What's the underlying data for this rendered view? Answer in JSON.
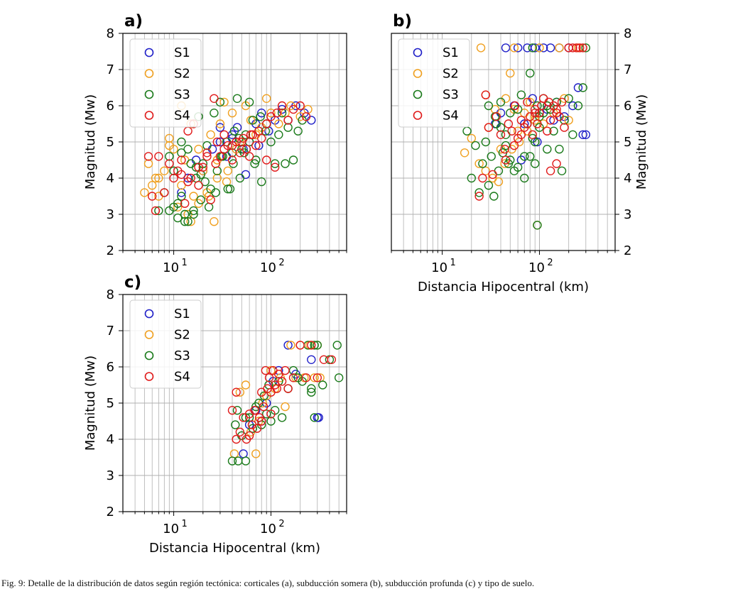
{
  "caption": "Fig. 9: Detalle de la distribución de datos según región tectónica: corticales (a), subducción somera (b), subducción profunda (c) y tipo de suelo.",
  "legend_entries": [
    {
      "name": "S1",
      "color": "#1f1fc8"
    },
    {
      "name": "S2",
      "color": "#f0a020"
    },
    {
      "name": "S3",
      "color": "#1a7a1a"
    },
    {
      "name": "S4",
      "color": "#e01a1a"
    }
  ],
  "chart_data": [
    {
      "panel": "a)",
      "type": "scatter",
      "xscale": "log",
      "xlim": [
        3,
        600
      ],
      "ylim": [
        2,
        8
      ],
      "xticks": [
        {
          "value": 10,
          "base": "10",
          "exp": "1"
        },
        {
          "value": 100,
          "base": "10",
          "exp": "2"
        }
      ],
      "yticks": [
        "2",
        "3",
        "4",
        "5",
        "6",
        "7",
        "8"
      ],
      "xlabel": "",
      "ylabel": "Magnitud (Mw)",
      "yaxis_side": "left",
      "grid": true,
      "legend_position": "upper-left",
      "series": [
        {
          "name": "S1",
          "x": [
            12,
            14,
            17,
            20,
            25,
            30,
            35,
            40,
            45,
            52,
            60,
            70,
            80,
            95,
            110,
            130,
            150,
            180,
            220,
            260,
            30,
            40,
            55,
            75
          ],
          "y": [
            3.6,
            4.0,
            4.5,
            4.2,
            4.8,
            5.0,
            4.6,
            5.2,
            5.4,
            4.8,
            5.0,
            5.5,
            5.8,
            5.3,
            5.6,
            5.9,
            5.6,
            6.0,
            5.8,
            5.6,
            5.4,
            5.1,
            4.1,
            4.9
          ]
        },
        {
          "name": "S2",
          "x": [
            5,
            5.5,
            6,
            6.5,
            7,
            8,
            9,
            10,
            11,
            12,
            13,
            14,
            15,
            16,
            18,
            20,
            22,
            24,
            26,
            28,
            30,
            33,
            36,
            40,
            44,
            48,
            55,
            62,
            70,
            80,
            90,
            100,
            120,
            140,
            160,
            200,
            240,
            12,
            15,
            18,
            23,
            28,
            35,
            9,
            7
          ],
          "y": [
            3.6,
            4.4,
            3.8,
            4.0,
            3.5,
            4.2,
            5.1,
            4.8,
            3.2,
            3.8,
            4.5,
            3.0,
            2.8,
            3.5,
            4.8,
            4.2,
            3.6,
            5.2,
            2.8,
            4.5,
            5.5,
            6.1,
            4.2,
            5.8,
            4.8,
            5.0,
            6.0,
            5.6,
            5.2,
            5.4,
            6.2,
            5.8,
            5.5,
            5.8,
            6.0,
            5.7,
            5.9,
            6.0,
            5.5,
            3.3,
            3.5,
            4.0,
            3.9,
            4.9,
            4.0
          ]
        },
        {
          "name": "S3",
          "x": [
            7,
            8,
            9,
            10,
            10,
            11,
            12,
            12,
            13,
            14,
            15,
            16,
            17,
            18,
            19,
            20,
            21,
            22,
            24,
            26,
            28,
            30,
            32,
            35,
            38,
            40,
            42,
            45,
            48,
            50,
            55,
            60,
            65,
            70,
            75,
            80,
            90,
            100,
            110,
            120,
            130,
            140,
            150,
            170,
            190,
            210,
            9,
            11,
            13,
            16,
            19,
            23,
            27,
            31,
            36,
            41,
            47,
            53,
            60,
            68,
            78,
            88,
            12,
            14,
            17
          ],
          "y": [
            3.1,
            3.6,
            4.6,
            4.2,
            3.2,
            2.9,
            3.5,
            4.7,
            3.0,
            2.8,
            4.4,
            3.1,
            4.0,
            5.7,
            3.4,
            4.4,
            3.9,
            4.9,
            3.7,
            5.8,
            4.2,
            6.1,
            4.6,
            5.0,
            3.7,
            4.7,
            5.3,
            6.2,
            4.0,
            4.8,
            5.2,
            5.0,
            5.6,
            4.5,
            5.3,
            3.9,
            5.5,
            5.0,
            4.4,
            5.2,
            5.8,
            4.4,
            5.4,
            4.5,
            5.3,
            5.6,
            3.1,
            3.3,
            2.8,
            3.0,
            4.1,
            3.2,
            3.6,
            4.6,
            3.7,
            4.4,
            5.1,
            4.7,
            6.1,
            4.4,
            5.7,
            5.3,
            5.0,
            4.8,
            4.3
          ]
        },
        {
          "name": "S4",
          "x": [
            5.5,
            6,
            6.5,
            7,
            8,
            9,
            10,
            11,
            12,
            13,
            14,
            15,
            16,
            18,
            20,
            22,
            24,
            26,
            28,
            30,
            33,
            36,
            40,
            44,
            48,
            52,
            56,
            60,
            65,
            70,
            80,
            90,
            100,
            115,
            130,
            150,
            170,
            200,
            230,
            12,
            14,
            18,
            22,
            27,
            33,
            40,
            50,
            62,
            75,
            90,
            110
          ],
          "y": [
            4.6,
            3.5,
            3.1,
            4.6,
            3.6,
            4.4,
            4.0,
            4.2,
            4.5,
            3.3,
            5.3,
            4.0,
            5.5,
            3.8,
            4.3,
            4.7,
            3.4,
            6.2,
            5.0,
            4.6,
            5.2,
            4.9,
            4.5,
            5.0,
            4.7,
            5.1,
            4.8,
            4.6,
            5.2,
            4.9,
            5.1,
            4.5,
            5.7,
            5.8,
            6.0,
            5.6,
            5.9,
            6.0,
            5.7,
            4.1,
            3.9,
            4.3,
            4.6,
            4.4,
            4.8,
            4.9,
            5.0,
            5.2,
            5.3,
            5.5,
            4.3
          ]
        }
      ]
    },
    {
      "panel": "b)",
      "type": "scatter",
      "xscale": "log",
      "xlim": [
        3,
        600
      ],
      "ylim": [
        2,
        8
      ],
      "xticks": [
        {
          "value": 10,
          "base": "10",
          "exp": "1"
        },
        {
          "value": 100,
          "base": "10",
          "exp": "2"
        }
      ],
      "yticks": [
        "2",
        "3",
        "4",
        "5",
        "6",
        "7",
        "8"
      ],
      "xlabel": "Distancia Hipocentral (km)",
      "ylabel": "Magnitud (Mw)",
      "yaxis_side": "right",
      "grid": true,
      "legend_position": "upper-left",
      "series": [
        {
          "name": "S1",
          "x": [
            45,
            60,
            75,
            90,
            110,
            130,
            160,
            200,
            250,
            300,
            40,
            55,
            70,
            85,
            100,
            120,
            150,
            180,
            220,
            280,
            35,
            65,
            95,
            140
          ],
          "y": [
            7.6,
            7.6,
            7.6,
            7.6,
            7.6,
            7.6,
            7.6,
            7.6,
            6.5,
            5.2,
            5.8,
            6.0,
            5.5,
            6.2,
            5.8,
            5.9,
            6.1,
            5.7,
            6.0,
            5.2,
            5.5,
            4.5,
            5.0,
            5.6
          ]
        },
        {
          "name": "S2",
          "x": [
            25,
            30,
            35,
            40,
            45,
            50,
            55,
            60,
            70,
            80,
            90,
            100,
            110,
            120,
            140,
            160,
            180,
            200,
            250,
            17,
            20,
            24,
            28,
            33,
            38,
            44,
            52,
            62,
            75,
            90,
            28,
            55,
            95
          ],
          "y": [
            7.6,
            5.4,
            5.9,
            4.8,
            6.2,
            6.9,
            7.6,
            5.3,
            5.8,
            6.1,
            5.7,
            7.6,
            5.5,
            6.0,
            5.8,
            7.6,
            6.2,
            5.6,
            7.6,
            4.7,
            5.1,
            4.4,
            4.2,
            4.0,
            3.9,
            4.4,
            4.8,
            5.0,
            5.3,
            5.6,
            6.3,
            5.9,
            2.7
          ]
        },
        {
          "name": "S3",
          "x": [
            18,
            20,
            22,
            24,
            26,
            28,
            30,
            32,
            34,
            36,
            38,
            40,
            42,
            45,
            48,
            50,
            55,
            60,
            65,
            70,
            75,
            80,
            85,
            90,
            95,
            100,
            110,
            120,
            130,
            140,
            150,
            160,
            170,
            180,
            200,
            220,
            250,
            280,
            300,
            30,
            35,
            40,
            45,
            50,
            60,
            70,
            80,
            90,
            100,
            110,
            120,
            85,
            95
          ],
          "y": [
            5.3,
            4.0,
            4.9,
            3.6,
            4.4,
            5.0,
            3.8,
            4.6,
            3.5,
            5.5,
            4.2,
            6.1,
            4.7,
            5.2,
            4.4,
            5.8,
            4.2,
            5.9,
            6.3,
            4.6,
            5.5,
            6.9,
            5.1,
            4.4,
            6.0,
            5.7,
            6.2,
            4.8,
            5.9,
            5.3,
            6.1,
            4.8,
            4.2,
            5.6,
            6.2,
            5.2,
            6.0,
            6.5,
            7.6,
            6.0,
            5.7,
            5.4,
            4.9,
            4.5,
            4.3,
            4.0,
            4.6,
            5.0,
            5.4,
            5.8,
            6.0,
            7.6,
            2.7
          ]
        },
        {
          "name": "S4",
          "x": [
            24,
            26,
            28,
            30,
            33,
            36,
            40,
            44,
            48,
            52,
            56,
            60,
            65,
            70,
            75,
            80,
            85,
            90,
            95,
            100,
            110,
            120,
            130,
            140,
            150,
            160,
            170,
            180,
            200,
            220,
            240,
            260,
            280,
            45,
            55,
            65,
            75,
            90,
            105,
            125,
            150,
            130,
            150
          ],
          "y": [
            3.5,
            4.0,
            6.3,
            5.4,
            4.1,
            5.7,
            5.2,
            4.8,
            5.5,
            5.3,
            6.0,
            5.1,
            5.6,
            5.4,
            6.1,
            5.7,
            5.2,
            5.9,
            5.5,
            5.8,
            6.2,
            5.3,
            5.6,
            6.0,
            5.8,
            5.7,
            6.1,
            5.4,
            7.6,
            7.6,
            7.6,
            7.6,
            7.6,
            4.5,
            4.9,
            5.2,
            5.5,
            5.8,
            6.0,
            6.1,
            5.9,
            4.2,
            4.4
          ]
        }
      ]
    },
    {
      "panel": "c)",
      "type": "scatter",
      "xscale": "log",
      "xlim": [
        3,
        600
      ],
      "ylim": [
        2,
        8
      ],
      "xticks": [
        {
          "value": 10,
          "base": "10",
          "exp": "1"
        },
        {
          "value": 100,
          "base": "10",
          "exp": "2"
        }
      ],
      "yticks": [
        "2",
        "3",
        "4",
        "5",
        "6",
        "7",
        "8"
      ],
      "xlabel": "Distancia Hipocentral (km)",
      "ylabel": "Magnitud (Mw)",
      "yaxis_side": "left",
      "grid": true,
      "legend_position": "upper-left",
      "series": [
        {
          "name": "S1",
          "x": [
            52,
            60,
            70,
            80,
            90,
            105,
            120,
            150,
            180,
            260,
            300,
            310
          ],
          "y": [
            3.6,
            4.4,
            4.8,
            4.5,
            5.0,
            5.6,
            5.9,
            6.6,
            5.8,
            6.2,
            4.6,
            4.6
          ]
        },
        {
          "name": "S2",
          "x": [
            42,
            48,
            55,
            62,
            68,
            75,
            82,
            90,
            100,
            110,
            125,
            140,
            160,
            180,
            200,
            220,
            250,
            280,
            300,
            320,
            70
          ],
          "y": [
            3.6,
            5.3,
            5.5,
            4.2,
            4.8,
            4.5,
            5.0,
            5.2,
            5.9,
            5.4,
            5.7,
            4.9,
            6.6,
            5.7,
            6.6,
            5.7,
            6.6,
            5.7,
            6.6,
            5.7,
            3.6
          ]
        },
        {
          "name": "S3",
          "x": [
            40,
            43,
            46,
            50,
            55,
            60,
            65,
            70,
            75,
            80,
            85,
            90,
            95,
            100,
            110,
            120,
            130,
            150,
            170,
            190,
            210,
            240,
            260,
            280,
            300,
            340,
            400,
            480,
            500,
            45,
            55,
            260,
            280
          ],
          "y": [
            3.4,
            4.4,
            3.4,
            4.1,
            3.4,
            4.6,
            4.3,
            4.9,
            5.0,
            4.4,
            5.2,
            4.7,
            5.5,
            4.5,
            4.8,
            5.6,
            4.6,
            5.4,
            5.9,
            5.7,
            5.6,
            6.6,
            5.3,
            4.6,
            6.6,
            5.5,
            6.2,
            6.6,
            5.7,
            4.8,
            4.6,
            5.4,
            6.6
          ]
        },
        {
          "name": "S4",
          "x": [
            40,
            44,
            48,
            52,
            56,
            60,
            64,
            68,
            72,
            76,
            80,
            84,
            88,
            92,
            96,
            100,
            105,
            110,
            115,
            120,
            130,
            140,
            150,
            170,
            200,
            230,
            260,
            300,
            350,
            420,
            44,
            60,
            80,
            100
          ],
          "y": [
            4.8,
            5.3,
            4.2,
            4.6,
            4.0,
            4.7,
            4.4,
            4.8,
            4.3,
            4.6,
            5.3,
            4.9,
            5.9,
            5.4,
            5.7,
            5.3,
            5.9,
            5.5,
            5.4,
            5.8,
            5.6,
            5.9,
            5.4,
            5.7,
            6.6,
            5.7,
            6.6,
            5.7,
            6.2,
            6.2,
            4.0,
            4.1,
            4.5,
            4.7
          ]
        }
      ]
    }
  ]
}
